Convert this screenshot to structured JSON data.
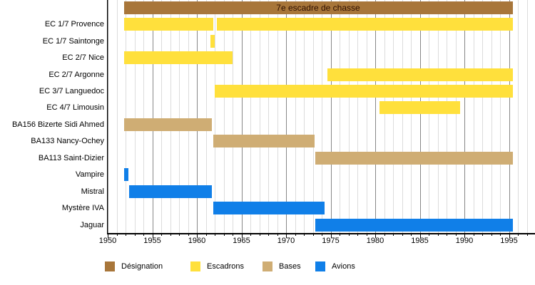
{
  "chart_data": {
    "type": "bar",
    "subtype": "gantt-timeline",
    "title": "7e escadre de chasse",
    "x_axis": {
      "start_year": 1950,
      "end_year": 1997,
      "label_interval": 5,
      "minor_interval": 1,
      "tick_labels": [
        "1950",
        "1955",
        "1960",
        "1965",
        "1970",
        "1975",
        "1980",
        "1985",
        "1990",
        "1995"
      ]
    },
    "colors": {
      "designation": "#a8763a",
      "escadrons": "#ffe03c",
      "bases": "#cfad74",
      "avions": "#107fe8",
      "designation_text": "#2e0f00",
      "gridline_minor": "#dcdcdc",
      "gridline_major": "#878787",
      "axis": "#000000"
    },
    "rows": [
      {
        "label": "",
        "category": "designation",
        "bars": [
          {
            "start": 1951.8,
            "end": 1995.4,
            "label": "7e escadre de chasse"
          }
        ]
      },
      {
        "label": "EC 1/7 Provence",
        "category": "escadrons",
        "bars": [
          {
            "start": 1951.8,
            "end": 1961.8
          },
          {
            "start": 1962.2,
            "end": 1995.4
          }
        ]
      },
      {
        "label": "EC 1/7 Saintonge",
        "category": "escadrons",
        "bars": [
          {
            "start": 1961.5,
            "end": 1962.0
          }
        ]
      },
      {
        "label": "EC 2/7 Nice",
        "category": "escadrons",
        "bars": [
          {
            "start": 1951.8,
            "end": 1964.0
          }
        ]
      },
      {
        "label": "EC 2/7 Argonne",
        "category": "escadrons",
        "bars": [
          {
            "start": 1974.6,
            "end": 1995.4
          }
        ]
      },
      {
        "label": "EC 3/7 Languedoc",
        "category": "escadrons",
        "bars": [
          {
            "start": 1962.0,
            "end": 1995.4
          }
        ]
      },
      {
        "label": "EC 4/7 Limousin",
        "category": "escadrons",
        "bars": [
          {
            "start": 1980.5,
            "end": 1989.5
          }
        ]
      },
      {
        "label": "BA156 Bizerte Sidi Ahmed",
        "category": "bases",
        "bars": [
          {
            "start": 1951.8,
            "end": 1961.7
          }
        ]
      },
      {
        "label": "BA133 Nancy-Ochey",
        "category": "bases",
        "bars": [
          {
            "start": 1961.8,
            "end": 1973.2
          }
        ]
      },
      {
        "label": "BA113 Saint-Dizier",
        "category": "bases",
        "bars": [
          {
            "start": 1973.3,
            "end": 1995.4
          }
        ]
      },
      {
        "label": "Vampire",
        "category": "avions",
        "bars": [
          {
            "start": 1951.8,
            "end": 1952.3
          }
        ]
      },
      {
        "label": "Mistral",
        "category": "avions",
        "bars": [
          {
            "start": 1952.4,
            "end": 1961.7
          }
        ]
      },
      {
        "label": "Mystère IVA",
        "category": "avions",
        "bars": [
          {
            "start": 1961.8,
            "end": 1974.3
          }
        ]
      },
      {
        "label": "Jaguar",
        "category": "avions",
        "bars": [
          {
            "start": 1973.3,
            "end": 1995.4
          }
        ]
      }
    ],
    "legend": [
      {
        "label": "Désignation",
        "category": "designation"
      },
      {
        "label": "Escadrons",
        "category": "escadrons"
      },
      {
        "label": "Bases",
        "category": "bases"
      },
      {
        "label": "Avions",
        "category": "avions"
      }
    ],
    "legend_grid_on": true,
    "legend_position": "bottom"
  }
}
